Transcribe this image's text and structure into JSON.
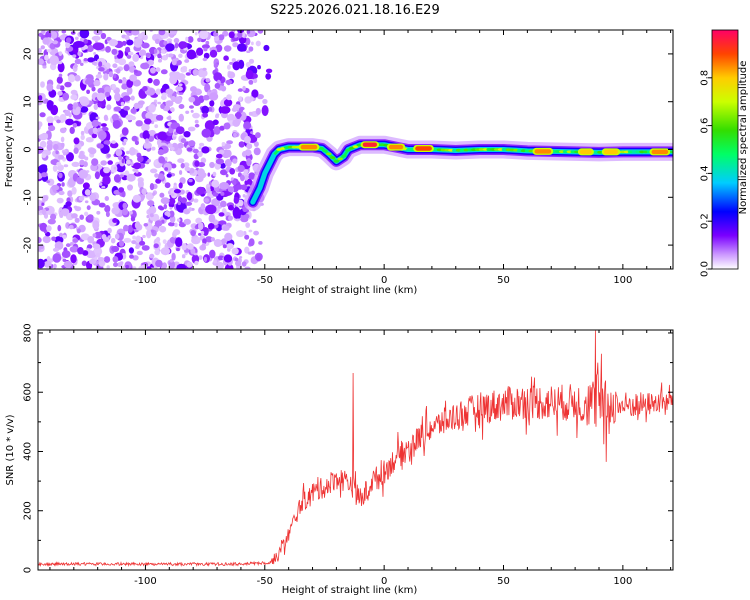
{
  "title": "S225.2026.021.18.16.E29",
  "chart_data": [
    {
      "type": "heatmap",
      "xlabel": "Height of straight line (km)",
      "ylabel": "Frequency (Hz)",
      "xlim": [
        -145,
        121
      ],
      "ylim": [
        -25,
        25
      ],
      "xticks": [
        -100,
        -50,
        0,
        50,
        100
      ],
      "yticks": [
        20,
        10,
        0,
        -10,
        -20
      ],
      "xtick_labels": [
        "-100",
        "-50",
        "0",
        "50",
        "100"
      ],
      "ytick_labels": [
        "20",
        "10",
        "0",
        "-10",
        "-20"
      ],
      "colorbar": {
        "label": "Normalized spectral amplitude",
        "range": [
          0,
          1
        ],
        "ticks": [
          0.0,
          0.2,
          0.4,
          0.6,
          0.8
        ],
        "tick_labels": [
          "0.0",
          "0.2",
          "0.4",
          "0.6",
          "0.8"
        ]
      },
      "noise_region_x": [
        -145,
        -48
      ],
      "signal_track": [
        [
          -55,
          -11
        ],
        [
          -52,
          -8
        ],
        [
          -50,
          -5
        ],
        [
          -48,
          -3
        ],
        [
          -46,
          -1
        ],
        [
          -44,
          0
        ],
        [
          -40,
          0.5
        ],
        [
          -35,
          0.5
        ],
        [
          -30,
          0.5
        ],
        [
          -26,
          0.2
        ],
        [
          -23,
          -1
        ],
        [
          -20,
          -2.5
        ],
        [
          -17,
          -1.5
        ],
        [
          -15,
          0
        ],
        [
          -10,
          1
        ],
        [
          -5,
          1
        ],
        [
          0,
          1
        ],
        [
          5,
          0.5
        ],
        [
          10,
          0
        ],
        [
          20,
          0
        ],
        [
          30,
          -0.2
        ],
        [
          40,
          0
        ],
        [
          50,
          0
        ],
        [
          60,
          -0.3
        ],
        [
          70,
          -0.4
        ],
        [
          80,
          -0.5
        ],
        [
          90,
          -0.6
        ],
        [
          100,
          -0.5
        ],
        [
          110,
          -0.5
        ],
        [
          121,
          -0.5
        ]
      ],
      "hot_spots": [
        {
          "x": [
            -35,
            -28
          ],
          "y": 0.5,
          "amp": 0.85
        },
        {
          "x": [
            -9,
            -3
          ],
          "y": 1,
          "amp": 0.95
        },
        {
          "x": [
            2,
            8
          ],
          "y": 0.5,
          "amp": 0.85
        },
        {
          "x": [
            13,
            20
          ],
          "y": 0.2,
          "amp": 0.9
        },
        {
          "x": [
            63,
            70
          ],
          "y": -0.4,
          "amp": 0.85
        },
        {
          "x": [
            82,
            87
          ],
          "y": -0.5,
          "amp": 0.8
        },
        {
          "x": [
            92,
            98
          ],
          "y": -0.5,
          "amp": 0.8
        },
        {
          "x": [
            112,
            119
          ],
          "y": -0.5,
          "amp": 0.85
        }
      ]
    },
    {
      "type": "line",
      "xlabel": "Height of straight line (km)",
      "ylabel": "SNR (10 * v/v)",
      "xlim": [
        -145,
        121
      ],
      "ylim": [
        0,
        810
      ],
      "xticks": [
        -100,
        -50,
        0,
        50,
        100
      ],
      "yticks": [
        0,
        200,
        400,
        600,
        800
      ],
      "xtick_labels": [
        "-100",
        "-50",
        "0",
        "50",
        "100"
      ],
      "ytick_labels": [
        "0",
        "200",
        "400",
        "600",
        "800"
      ],
      "color": "#ee3333",
      "envelope": [
        [
          -145,
          20
        ],
        [
          -60,
          20
        ],
        [
          -48,
          25
        ],
        [
          -45,
          40
        ],
        [
          -40,
          120
        ],
        [
          -35,
          220
        ],
        [
          -30,
          260
        ],
        [
          -25,
          280
        ],
        [
          -20,
          310
        ],
        [
          -15,
          300
        ],
        [
          -13,
          280
        ],
        [
          -10,
          230
        ],
        [
          -5,
          300
        ],
        [
          0,
          330
        ],
        [
          5,
          380
        ],
        [
          10,
          410
        ],
        [
          15,
          450
        ],
        [
          20,
          480
        ],
        [
          30,
          520
        ],
        [
          40,
          545
        ],
        [
          50,
          560
        ],
        [
          60,
          570
        ],
        [
          70,
          565
        ],
        [
          80,
          565
        ],
        [
          90,
          560
        ],
        [
          100,
          555
        ],
        [
          110,
          560
        ],
        [
          121,
          570
        ]
      ],
      "noise_amplitude": [
        [
          -145,
          8
        ],
        [
          -48,
          8
        ],
        [
          -45,
          25
        ],
        [
          -30,
          45
        ],
        [
          -10,
          50
        ],
        [
          20,
          55
        ],
        [
          40,
          70
        ],
        [
          80,
          80
        ],
        [
          90,
          120
        ],
        [
          100,
          60
        ],
        [
          121,
          40
        ]
      ],
      "spikes": [
        {
          "x": -13,
          "y": 665
        },
        {
          "x": -12.5,
          "y": 290
        },
        {
          "x": 88.5,
          "y": 808
        },
        {
          "x": 89.5,
          "y": 700
        },
        {
          "x": 91,
          "y": 730
        },
        {
          "x": 93,
          "y": 365
        }
      ]
    }
  ]
}
